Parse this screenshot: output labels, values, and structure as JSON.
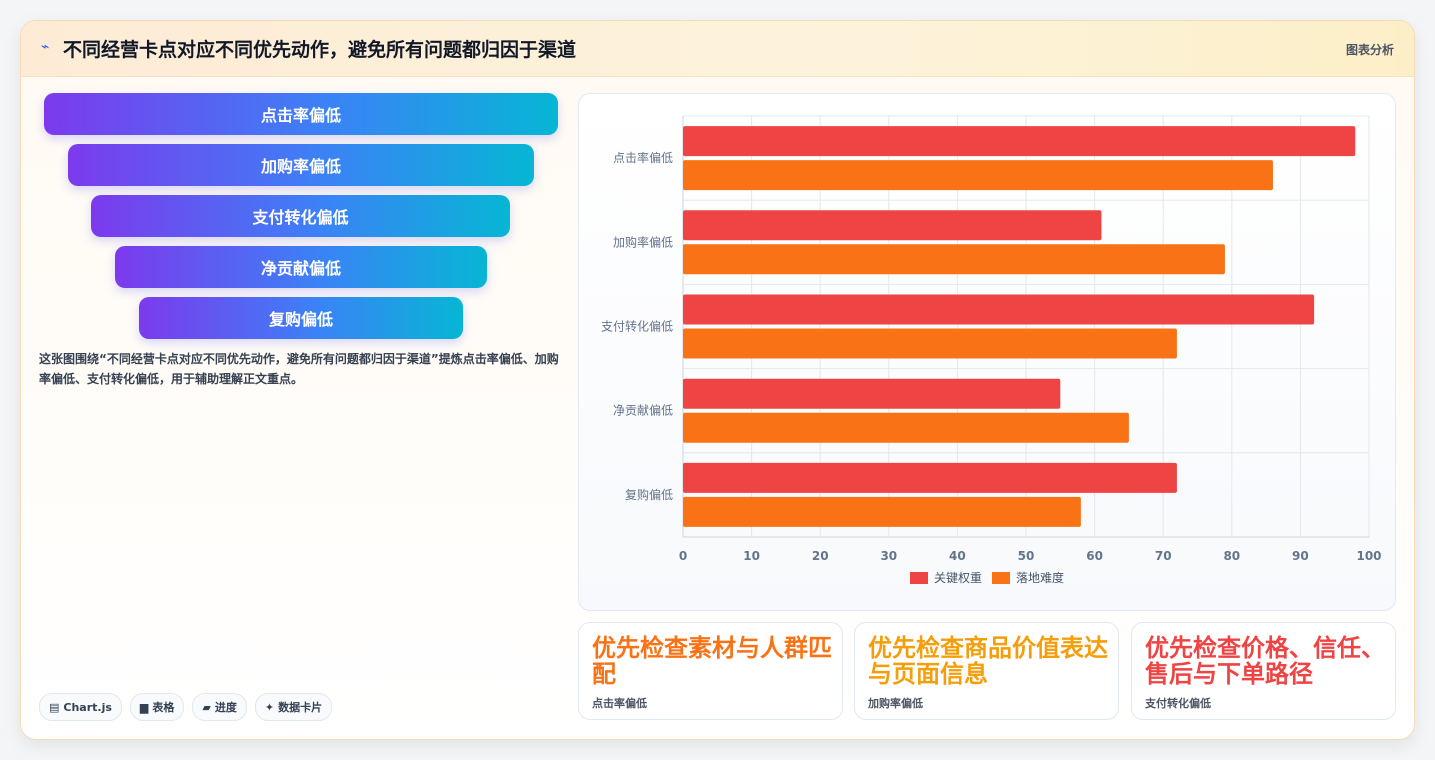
{
  "header": {
    "icon": "trend-icon",
    "title": "不同经营卡点对应不同优先动作，避免所有问题都归因于渠道",
    "tag": "图表分析"
  },
  "funnel": [
    {
      "label": "点击率偏低"
    },
    {
      "label": "加购率偏低"
    },
    {
      "label": "支付转化偏低"
    },
    {
      "label": "净贡献偏低"
    },
    {
      "label": "复购偏低"
    }
  ],
  "description": "这张图围绕“不同经营卡点对应不同优先动作，避免所有问题都归因于渠道”提炼点击率偏低、加购率偏低、支付转化偏低，用于辅助理解正文重点。",
  "chips": [
    {
      "icon": "chart-icon",
      "glyph": "▤",
      "label": "Chart.js"
    },
    {
      "icon": "table-icon",
      "glyph": "▆",
      "label": "表格"
    },
    {
      "icon": "progress-icon",
      "glyph": "▰",
      "label": "进度"
    },
    {
      "icon": "sparkle-icon",
      "glyph": "✦",
      "label": "数据卡片"
    }
  ],
  "chart_data": {
    "type": "bar",
    "orientation": "horizontal",
    "categories": [
      "点击率偏低",
      "加购率偏低",
      "支付转化偏低",
      "净贡献偏低",
      "复购偏低"
    ],
    "series": [
      {
        "name": "关键权重",
        "color": "#ef4444",
        "values": [
          98,
          61,
          92,
          55,
          72
        ]
      },
      {
        "name": "落地难度",
        "color": "#f97316",
        "values": [
          86,
          79,
          72,
          65,
          58
        ]
      }
    ],
    "xlim": [
      0,
      100
    ],
    "xticks": [
      "0",
      "10",
      "20",
      "30",
      "40",
      "50",
      "60",
      "70",
      "80",
      "90",
      "100"
    ],
    "grid": true,
    "legend": "bottom"
  },
  "stats": [
    {
      "value": "优先检查素材与人群匹配",
      "label": "点击率偏低",
      "color": "#f97316"
    },
    {
      "value": "优先检查商品价值表达与页面信息",
      "label": "加购率偏低",
      "color": "#f59e0b"
    },
    {
      "value": "优先检查价格、信任、售后与下单路径",
      "label": "支付转化偏低",
      "color": "#ef4444"
    }
  ]
}
